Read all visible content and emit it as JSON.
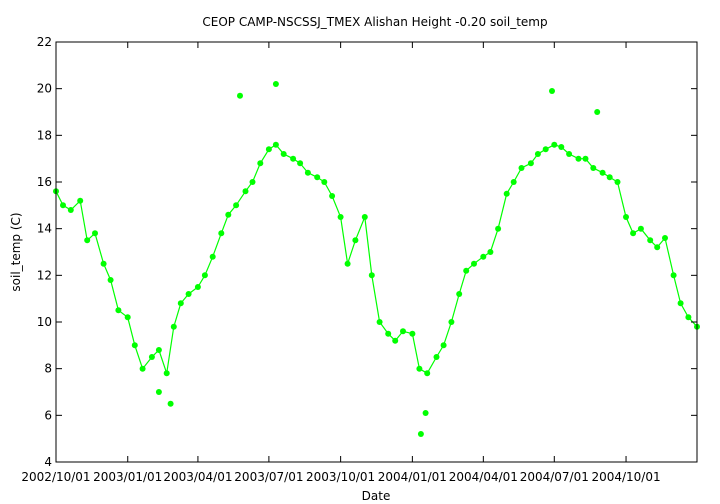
{
  "chart_data": {
    "type": "line",
    "title": "CEOP CAMP-NSCSSJ_TMEX Alishan Height -0.20 soil_temp",
    "xlabel": "Date",
    "ylabel": "soil_temp (C)",
    "xlim": [
      "2002-10-01",
      "2004-12-31"
    ],
    "ylim": [
      4,
      22
    ],
    "y_ticks": [
      4,
      6,
      8,
      10,
      12,
      14,
      16,
      18,
      20,
      22
    ],
    "x_ticks": [
      "2002/10/01",
      "2003/01/01",
      "2003/04/01",
      "2003/07/01",
      "2003/10/01",
      "2004/01/01",
      "2004/04/01",
      "2004/07/01",
      "2004/10/01"
    ],
    "grid": false,
    "legend": "none",
    "colors": {
      "series": "#00ff00",
      "axis": "#000000"
    },
    "series": [
      {
        "x": [
          "2002-10-01",
          "2002-10-10",
          "2002-10-20",
          "2002-11-01",
          "2002-11-10",
          "2002-11-20",
          "2002-12-01",
          "2002-12-10",
          "2002-12-20",
          "2003-01-01",
          "2003-01-10",
          "2003-01-20",
          "2003-02-01",
          "2003-02-10",
          "2003-02-20",
          "2003-03-01",
          "2003-03-10",
          "2003-03-20",
          "2003-04-01",
          "2003-04-10",
          "2003-04-20",
          "2003-05-01",
          "2003-05-10",
          "2003-05-20",
          "2003-06-01",
          "2003-06-10",
          "2003-06-20",
          "2003-07-01",
          "2003-07-10",
          "2003-07-20",
          "2003-08-01",
          "2003-08-10",
          "2003-08-20",
          "2003-09-01",
          "2003-09-10",
          "2003-09-20",
          "2003-10-01",
          "2003-10-10",
          "2003-10-20",
          "2003-11-01",
          "2003-11-10",
          "2003-11-20",
          "2003-12-01",
          "2003-12-10",
          "2003-12-20",
          "2004-01-01",
          "2004-01-10",
          "2004-01-20",
          "2004-02-01",
          "2004-02-10",
          "2004-02-20",
          "2004-03-01",
          "2004-03-10",
          "2004-03-20",
          "2004-04-01",
          "2004-04-10",
          "2004-04-20",
          "2004-05-01",
          "2004-05-10",
          "2004-05-20",
          "2004-06-01",
          "2004-06-10",
          "2004-06-20",
          "2004-07-01",
          "2004-07-10",
          "2004-07-20",
          "2004-08-01",
          "2004-08-10",
          "2004-08-20",
          "2004-09-01",
          "2004-09-10",
          "2004-09-20",
          "2004-10-01",
          "2004-10-10",
          "2004-10-20",
          "2004-11-01",
          "2004-11-10",
          "2004-11-20",
          "2004-12-01",
          "2004-12-10",
          "2004-12-20",
          "2004-12-31"
        ],
        "values": [
          15.6,
          15.0,
          14.8,
          15.2,
          13.5,
          13.8,
          12.5,
          11.8,
          10.5,
          10.2,
          9.0,
          8.0,
          8.5,
          8.8,
          7.8,
          9.8,
          10.8,
          11.2,
          11.5,
          12.0,
          12.8,
          13.8,
          14.6,
          15.0,
          15.6,
          16.0,
          16.8,
          17.4,
          17.6,
          17.2,
          17.0,
          16.8,
          16.4,
          16.2,
          16.0,
          15.4,
          14.5,
          12.5,
          13.5,
          14.5,
          12.0,
          10.0,
          9.5,
          9.2,
          9.6,
          9.5,
          8.0,
          7.8,
          8.5,
          9.0,
          10.0,
          11.2,
          12.2,
          12.5,
          12.8,
          13.0,
          14.0,
          15.5,
          16.0,
          16.6,
          16.8,
          17.2,
          17.4,
          17.6,
          17.5,
          17.2,
          17.0,
          17.0,
          16.6,
          16.4,
          16.2,
          16.0,
          14.5,
          13.8,
          14.0,
          13.5,
          13.2,
          13.6,
          12.0,
          10.8,
          10.2,
          9.8
        ]
      }
    ],
    "extremes": [
      {
        "x": "2003-02-10",
        "value": 7.0
      },
      {
        "x": "2003-02-25",
        "value": 6.5
      },
      {
        "x": "2003-05-25",
        "value": 19.7
      },
      {
        "x": "2003-07-10",
        "value": 20.2
      },
      {
        "x": "2004-01-12",
        "value": 5.2
      },
      {
        "x": "2004-01-18",
        "value": 6.1
      },
      {
        "x": "2004-06-28",
        "value": 19.9
      },
      {
        "x": "2004-08-25",
        "value": 19.0
      }
    ]
  }
}
